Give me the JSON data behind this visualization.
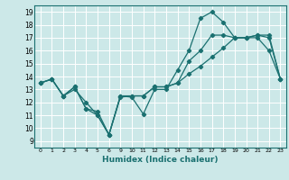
{
  "title": "",
  "xlabel": "Humidex (Indice chaleur)",
  "bg_color": "#cce8e8",
  "grid_color": "#ffffff",
  "line_color": "#1a7070",
  "xtick_labels": [
    "0",
    "1",
    "2",
    "3",
    "4",
    "5",
    "6",
    "9",
    "10",
    "11",
    "12",
    "13",
    "14",
    "15",
    "16",
    "17",
    "18",
    "19",
    "20",
    "21",
    "22",
    "23"
  ],
  "xtick_pos": [
    0,
    1,
    2,
    3,
    4,
    5,
    6,
    7,
    8,
    9,
    10,
    11,
    12,
    13,
    14,
    15,
    16,
    17,
    18,
    19,
    20,
    21
  ],
  "yticks": [
    9,
    10,
    11,
    12,
    13,
    14,
    15,
    16,
    17,
    18,
    19
  ],
  "xlim": [
    -0.5,
    21.5
  ],
  "ylim": [
    8.5,
    19.5
  ],
  "series": [
    {
      "x": [
        0,
        1,
        2,
        3,
        4,
        5,
        6,
        7,
        8,
        9,
        10,
        11,
        12,
        13,
        14,
        15,
        16,
        17,
        18,
        19,
        20,
        21
      ],
      "y": [
        13.5,
        13.8,
        12.5,
        13.0,
        12.0,
        11.0,
        9.5,
        12.5,
        12.4,
        11.1,
        13.0,
        13.0,
        14.5,
        16.0,
        18.5,
        19.0,
        18.2,
        17.0,
        17.0,
        17.0,
        16.0,
        13.8
      ]
    },
    {
      "x": [
        0,
        1,
        2,
        3,
        4,
        5,
        6,
        7,
        8,
        9,
        10,
        11,
        12,
        13,
        14,
        15,
        16,
        17,
        18,
        19,
        20,
        21
      ],
      "y": [
        13.5,
        13.8,
        12.5,
        13.2,
        11.5,
        11.3,
        9.5,
        12.5,
        12.5,
        12.5,
        13.2,
        13.2,
        13.5,
        15.2,
        16.0,
        17.2,
        17.2,
        17.0,
        17.0,
        17.2,
        17.0,
        13.8
      ]
    },
    {
      "x": [
        0,
        1,
        2,
        3,
        4,
        5,
        6,
        7,
        8,
        9,
        10,
        11,
        12,
        13,
        14,
        15,
        16,
        17,
        18,
        19,
        20,
        21
      ],
      "y": [
        13.5,
        13.8,
        12.5,
        13.2,
        11.5,
        11.0,
        9.5,
        12.4,
        12.5,
        12.5,
        13.2,
        13.2,
        13.5,
        14.2,
        14.8,
        15.5,
        16.2,
        17.0,
        17.0,
        17.2,
        17.2,
        13.8
      ]
    }
  ]
}
